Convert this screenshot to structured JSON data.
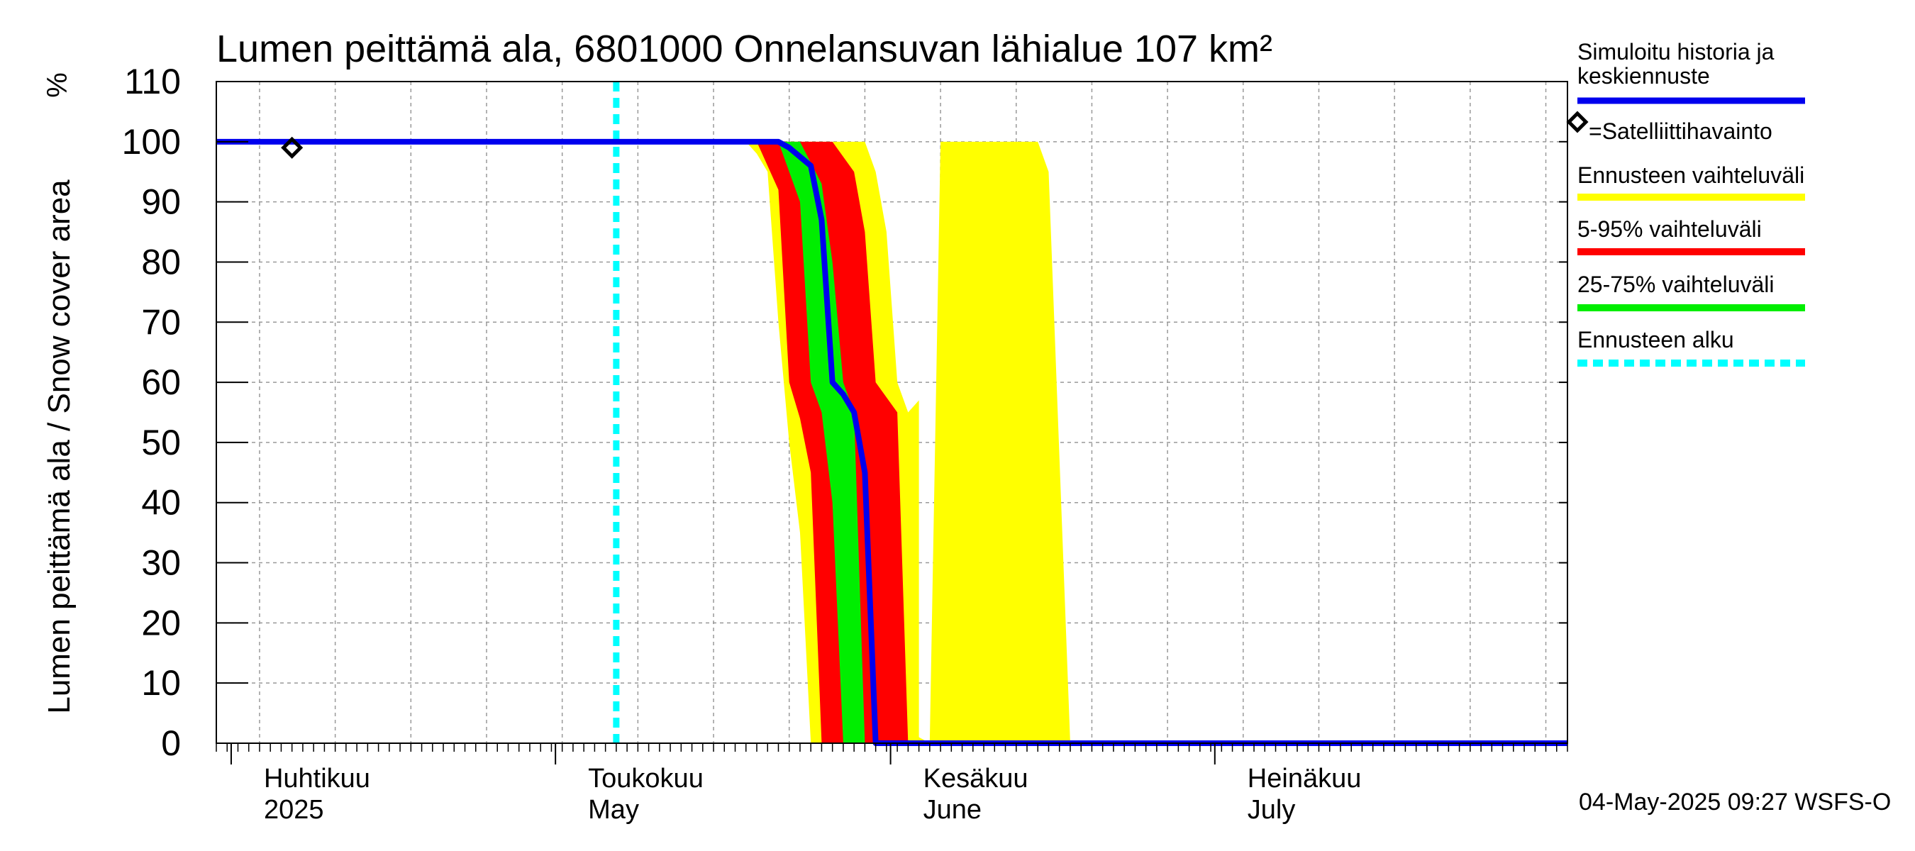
{
  "chart_data": {
    "type": "area",
    "title": "Lumen peittämä ala, 6801000 Onnelansuvan lähialue 107 km²",
    "ylabel": "Lumen peittämä ala / Snow cover area",
    "yunit": "%",
    "ylim": [
      0,
      110
    ],
    "yticks": [
      0,
      10,
      20,
      30,
      40,
      50,
      60,
      70,
      80,
      90,
      100,
      110
    ],
    "xlim": [
      "2025-03-28",
      "2025-07-31"
    ],
    "grid": true,
    "legend_position": "right",
    "month_labels": [
      {
        "date": "2025-04-01",
        "line1": "Huhtikuu",
        "line2": "2025"
      },
      {
        "date": "2025-05-01",
        "line1": "Toukokuu",
        "line2": "May"
      },
      {
        "date": "2025-06-01",
        "line1": "Kesäkuu",
        "line2": "June"
      },
      {
        "date": "2025-07-01",
        "line1": "Heinäkuu",
        "line2": "July"
      }
    ],
    "forecast_start": "2025-05-04",
    "footer": "04-May-2025 09:27 WSFS-O",
    "legend": [
      {
        "label": "Simuloitu historia ja keskiennuste",
        "type": "line",
        "color": "#0000ee"
      },
      {
        "label": "=Satelliittihavainto",
        "type": "marker",
        "color": "#000000"
      },
      {
        "label": "Ennusteen vaihteluväli",
        "type": "line",
        "color": "#ffff00"
      },
      {
        "label": "5-95% vaihteluväli",
        "type": "line",
        "color": "#ff0000"
      },
      {
        "label": "25-75% vaihteluväli",
        "type": "line",
        "color": "#00ee00"
      },
      {
        "label": "Ennusteen alku",
        "type": "dashed",
        "color": "#00ffff"
      }
    ],
    "series": [
      {
        "name": "Ennusteen vaihteluväli",
        "kind": "band",
        "color": "#ffff00",
        "upper": [
          [
            "2025-05-04",
            100
          ],
          [
            "2025-05-27",
            100
          ],
          [
            "2025-05-28",
            95
          ],
          [
            "2025-05-29",
            85
          ],
          [
            "2025-05-30",
            60
          ],
          [
            "2025-05-31",
            55
          ],
          [
            "2025-06-01",
            57
          ],
          [
            "2025-06-01",
            1
          ],
          [
            "2025-06:02",
            0
          ]
        ],
        "lower": [
          [
            "2025-05-04",
            100
          ],
          [
            "2025-05-16",
            100
          ],
          [
            "2025-05-17",
            98
          ],
          [
            "2025-05-18",
            95
          ],
          [
            "2025-05-19",
            70
          ],
          [
            "2025-05-20",
            50
          ],
          [
            "2025-05-21",
            35
          ],
          [
            "2025-05-22",
            0
          ]
        ]
      },
      {
        "name": "Ennusteen vaihteluväli (late)",
        "kind": "band",
        "color": "#ffff00",
        "upper": [
          [
            "2025-06-03",
            100
          ],
          [
            "2025-06-12",
            100
          ],
          [
            "2025-06-13",
            95
          ],
          [
            "2025-06-15",
            0
          ]
        ],
        "lower": [
          [
            "2025-06-02",
            0
          ],
          [
            "2025-06-15",
            0
          ]
        ]
      },
      {
        "name": "5-95% vaihteluväli",
        "kind": "band",
        "color": "#ff0000",
        "upper": [
          [
            "2025-05-04",
            100
          ],
          [
            "2025-05-24",
            100
          ],
          [
            "2025-05-26",
            95
          ],
          [
            "2025-05-27",
            85
          ],
          [
            "2025-05-28",
            60
          ],
          [
            "2025-05-30",
            55
          ],
          [
            "2025-05-31",
            0
          ]
        ],
        "lower": [
          [
            "2025-05-04",
            100
          ],
          [
            "2025-05-17",
            100
          ],
          [
            "2025-05-19",
            92
          ],
          [
            "2025-05-20",
            60
          ],
          [
            "2025-05-21",
            54
          ],
          [
            "2025-05-22",
            45
          ],
          [
            "2025-05-23",
            0
          ]
        ]
      },
      {
        "name": "25-75% vaihteluväli",
        "kind": "band",
        "color": "#00ee00",
        "upper": [
          [
            "2025-05-04",
            100
          ],
          [
            "2025-05-21",
            100
          ],
          [
            "2025-05-23",
            93
          ],
          [
            "2025-05-24",
            80
          ],
          [
            "2025-05-25",
            60
          ],
          [
            "2025-05-26",
            55
          ],
          [
            "2025-05-27",
            0
          ]
        ],
        "lower": [
          [
            "2025-05-04",
            100
          ],
          [
            "2025-05-19",
            100
          ],
          [
            "2025-05-21",
            90
          ],
          [
            "2025-05-22",
            60
          ],
          [
            "2025-05-23",
            55
          ],
          [
            "2025-05-24",
            40
          ],
          [
            "2025-05-25",
            0
          ]
        ]
      },
      {
        "name": "Simuloitu historia ja keskiennuste",
        "kind": "line",
        "color": "#0000ee",
        "points": [
          [
            "2025-03-28",
            100
          ],
          [
            "2025-05-19",
            100
          ],
          [
            "2025-05-20",
            99
          ],
          [
            "2025-05-22",
            96
          ],
          [
            "2025-05-23",
            87
          ],
          [
            "2025-05-24",
            60
          ],
          [
            "2025-05-25",
            58
          ],
          [
            "2025-05-26",
            55
          ],
          [
            "2025-05-27",
            45
          ],
          [
            "2025-05-28",
            0
          ],
          [
            "2025-07-31",
            0
          ]
        ]
      }
    ],
    "satellite_observations": [
      [
        "2025-04-04",
        99
      ]
    ]
  }
}
